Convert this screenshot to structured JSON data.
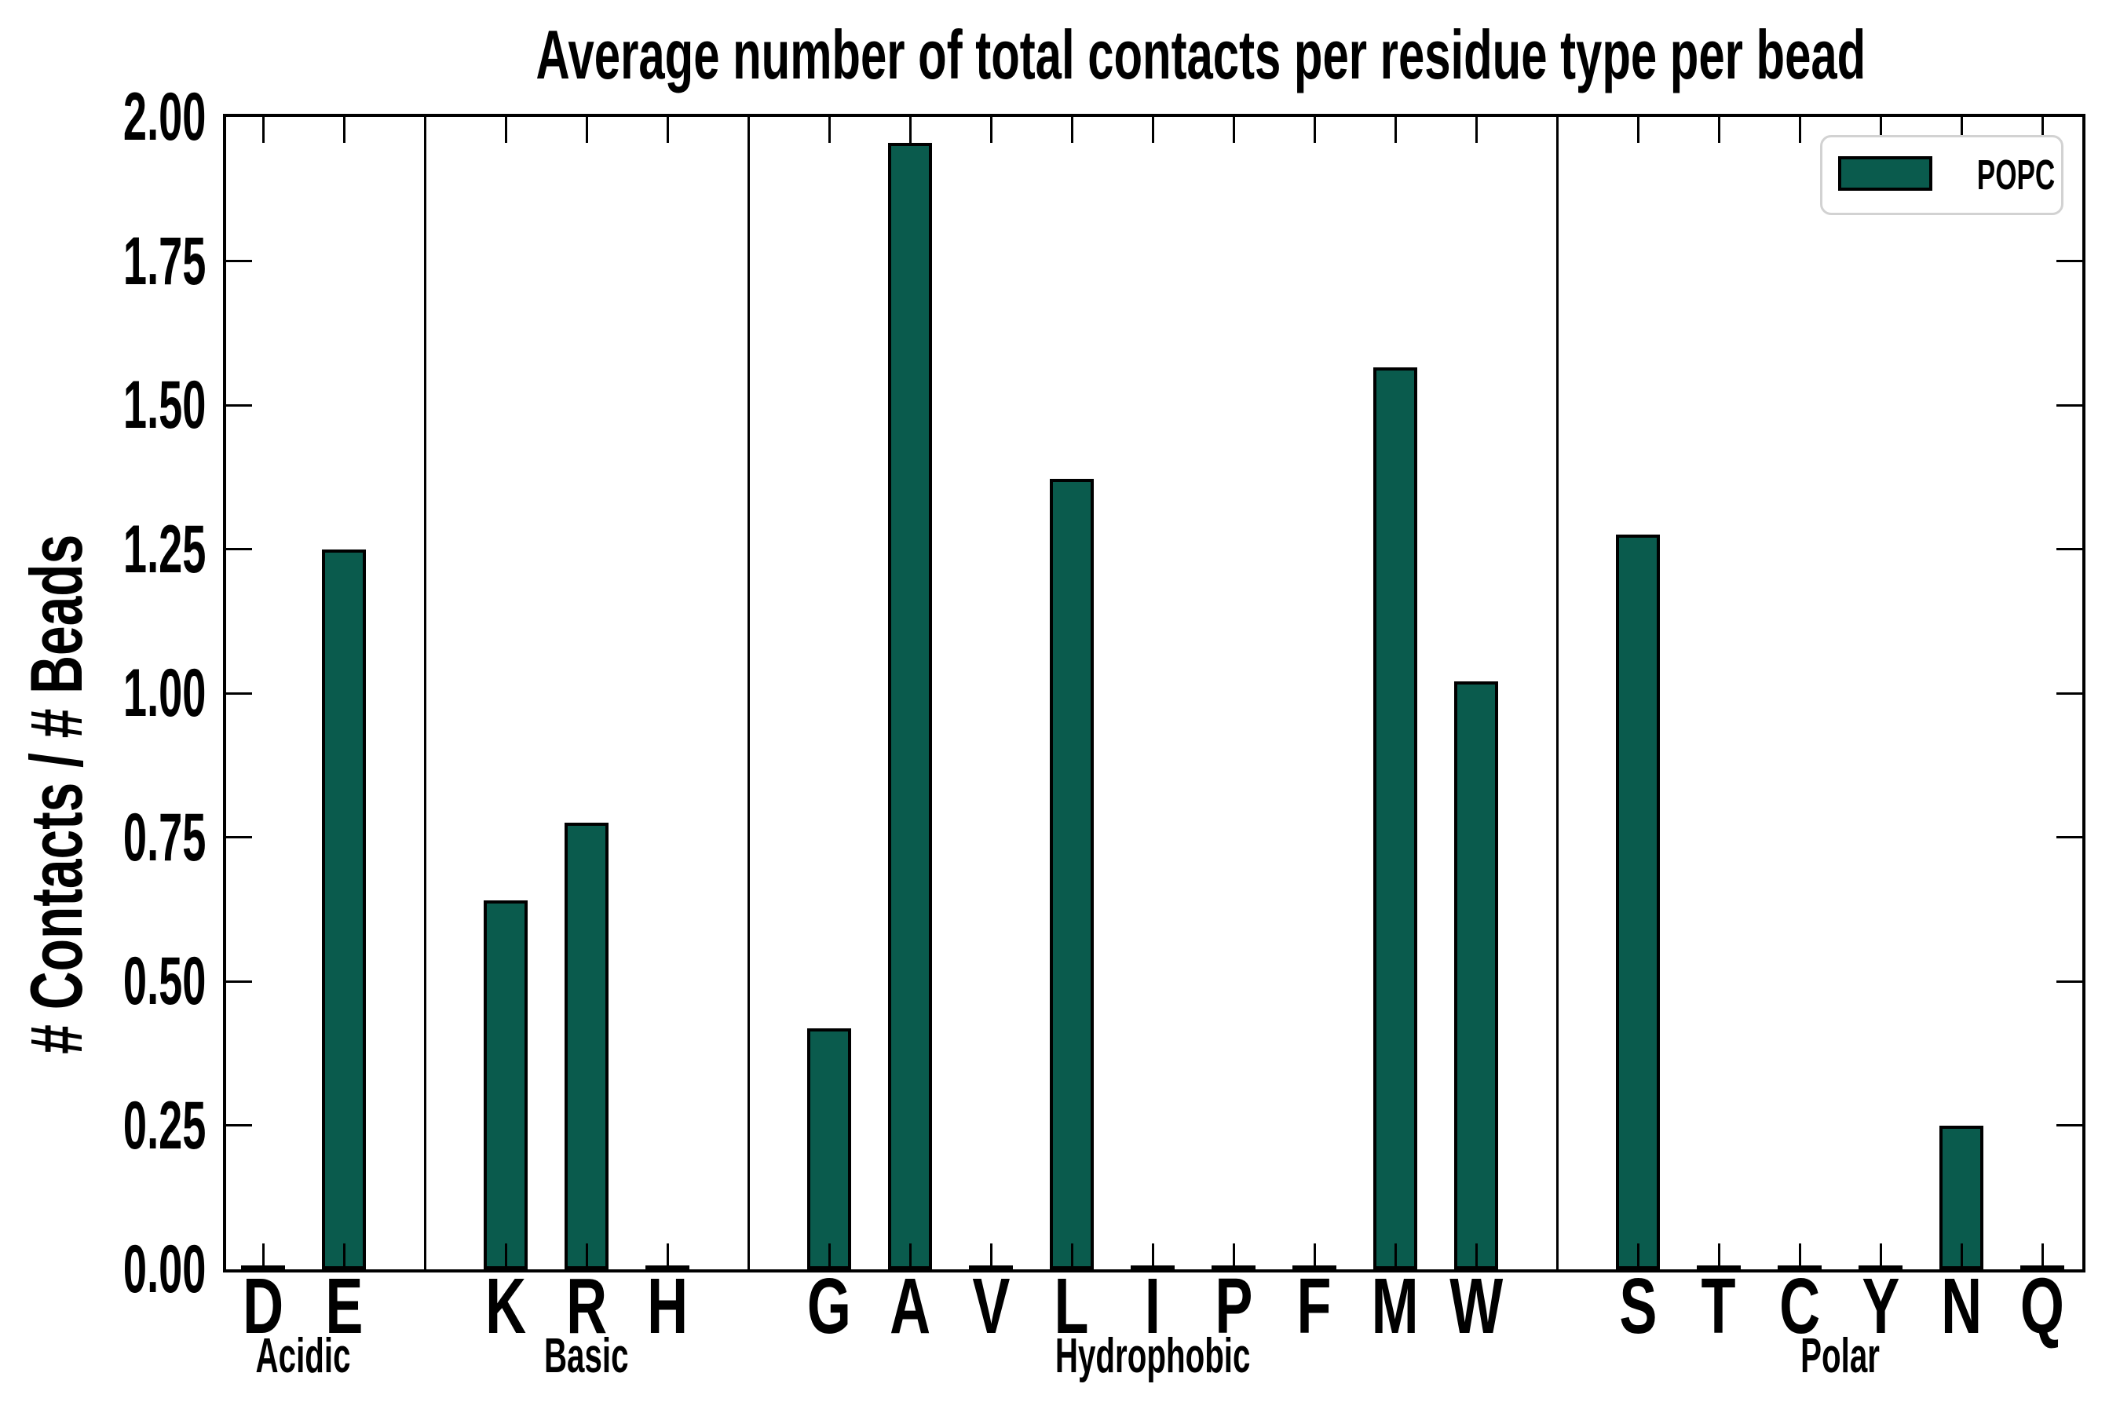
{
  "figure": {
    "title": "Average number of total contacts per residue type per bead",
    "y_axis_label": "# Contacts / # Beads",
    "y_tick_labels": [
      "2.00",
      "1.75",
      "1.50",
      "1.25",
      "1.00",
      "0.75",
      "0.50",
      "0.25",
      "0.00"
    ],
    "legend": {
      "label": "POPC"
    }
  },
  "colors": {
    "bar_fill": "#0a5b4d",
    "bar_edge": "#000000",
    "axis": "#000000",
    "legend_border": "#d2d2d2",
    "background": "#ffffff"
  },
  "chart_data": {
    "type": "bar",
    "title": "Average number of total contacts per residue type per bead",
    "ylabel": "# Contacts / # Beads",
    "xlabel": "",
    "ylim": [
      0,
      2.0
    ],
    "ytick_step": 0.25,
    "grid": false,
    "legend_entries": [
      "POPC"
    ],
    "legend_position": "upper right",
    "bar_color": "#0a5b4d",
    "groups": [
      {
        "name": "Acidic",
        "categories": [
          "D",
          "E"
        ],
        "values": [
          0.005,
          1.25
        ]
      },
      {
        "name": "Basic",
        "categories": [
          "K",
          "R",
          "H"
        ],
        "values": [
          0.64,
          0.775,
          0.005
        ]
      },
      {
        "name": "Hydrophobic",
        "categories": [
          "G",
          "A",
          "V",
          "L",
          "I",
          "P",
          "F",
          "M",
          "W"
        ],
        "values": [
          0.418,
          1.955,
          0.005,
          1.372,
          0.005,
          0.005,
          0.005,
          1.565,
          1.02
        ]
      },
      {
        "name": "Polar",
        "categories": [
          "S",
          "T",
          "C",
          "Y",
          "N",
          "Q"
        ],
        "values": [
          1.275,
          0.005,
          0.005,
          0.005,
          0.25,
          0.005
        ]
      }
    ]
  }
}
